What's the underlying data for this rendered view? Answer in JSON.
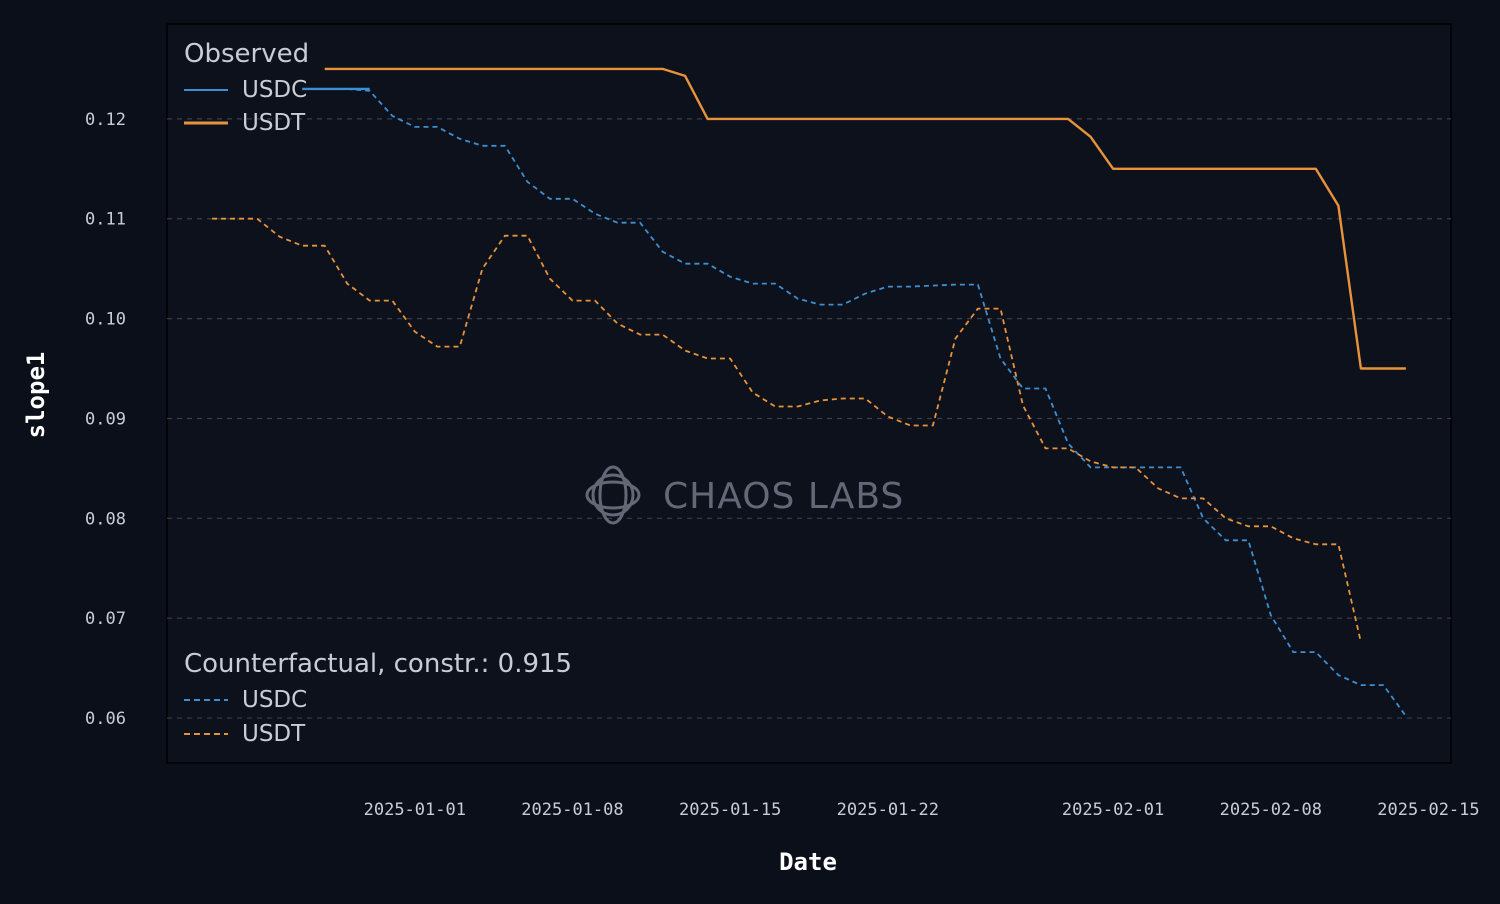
{
  "chart_data": {
    "type": "line",
    "xlabel": "Date",
    "ylabel": "slope1",
    "ylim": [
      0.0555,
      0.1295
    ],
    "xlim": [
      "2024-12-21",
      "2025-02-16"
    ],
    "x_ticks": [
      "2025-01-01",
      "2025-01-08",
      "2025-01-15",
      "2025-01-22",
      "2025-02-01",
      "2025-02-08",
      "2025-02-15"
    ],
    "y_ticks": [
      0.06,
      0.07,
      0.08,
      0.09,
      0.1,
      0.11,
      0.12
    ],
    "y_tick_labels": [
      "0.06",
      "0.07",
      "0.08",
      "0.09",
      "0.10",
      "0.11",
      "0.12"
    ],
    "grid": "horizontal dashed",
    "watermark": "CHAOS LABS",
    "legend_groups": [
      {
        "title": "Observed",
        "placement": "top-left",
        "entries": [
          {
            "label": "USDC",
            "series": 0
          },
          {
            "label": "USDT",
            "series": 1
          }
        ]
      },
      {
        "title": "Counterfactual, constr.: 0.915",
        "placement": "bottom-left",
        "entries": [
          {
            "label": "USDC",
            "series": 2
          },
          {
            "label": "USDT",
            "series": 3
          }
        ]
      }
    ],
    "series": [
      {
        "name": "USDC",
        "group": "Observed",
        "color": "#3d8fd1",
        "style": "solid",
        "points": [
          [
            "2024-12-27",
            0.123
          ],
          [
            "2024-12-28",
            0.123
          ],
          [
            "2024-12-29",
            0.123
          ],
          [
            "2024-12-30",
            0.123
          ]
        ]
      },
      {
        "name": "USDT",
        "group": "Observed",
        "color": "#e8923a",
        "style": "solid",
        "points": [
          [
            "2024-12-28",
            0.125
          ],
          [
            "2025-01-12",
            0.125
          ],
          [
            "2025-01-13",
            0.1243
          ],
          [
            "2025-01-14",
            0.12
          ],
          [
            "2025-01-30",
            0.12
          ],
          [
            "2025-01-31",
            0.1182
          ],
          [
            "2025-02-01",
            0.115
          ],
          [
            "2025-02-10",
            0.115
          ],
          [
            "2025-02-11",
            0.1113
          ],
          [
            "2025-02-12",
            0.095
          ],
          [
            "2025-02-14",
            0.095
          ]
        ]
      },
      {
        "name": "USDC",
        "group": "Counterfactual, constr.: 0.915",
        "color": "#3d8fd1",
        "style": "dashed",
        "points": [
          [
            "2024-12-29",
            0.123
          ],
          [
            "2024-12-30",
            0.1228
          ],
          [
            "2024-12-31",
            0.1203
          ],
          [
            "2025-01-01",
            0.1192
          ],
          [
            "2025-01-02",
            0.1192
          ],
          [
            "2025-01-03",
            0.118
          ],
          [
            "2025-01-04",
            0.1173
          ],
          [
            "2025-01-05",
            0.1173
          ],
          [
            "2025-01-06",
            0.1137
          ],
          [
            "2025-01-07",
            0.112
          ],
          [
            "2025-01-08",
            0.112
          ],
          [
            "2025-01-09",
            0.1105
          ],
          [
            "2025-01-10",
            0.1096
          ],
          [
            "2025-01-11",
            0.1096
          ],
          [
            "2025-01-12",
            0.1067
          ],
          [
            "2025-01-13",
            0.1055
          ],
          [
            "2025-01-14",
            0.1055
          ],
          [
            "2025-01-15",
            0.1042
          ],
          [
            "2025-01-16",
            0.1035
          ],
          [
            "2025-01-17",
            0.1035
          ],
          [
            "2025-01-18",
            0.102
          ],
          [
            "2025-01-19",
            0.1014
          ],
          [
            "2025-01-20",
            0.1014
          ],
          [
            "2025-01-21",
            0.1025
          ],
          [
            "2025-01-22",
            0.1032
          ],
          [
            "2025-01-23",
            0.1032
          ],
          [
            "2025-01-24",
            0.1033
          ],
          [
            "2025-01-25",
            0.1034
          ],
          [
            "2025-01-26",
            0.1034
          ],
          [
            "2025-01-27",
            0.096
          ],
          [
            "2025-01-28",
            0.093
          ],
          [
            "2025-01-29",
            0.093
          ],
          [
            "2025-01-30",
            0.0875
          ],
          [
            "2025-01-31",
            0.0851
          ],
          [
            "2025-02-01",
            0.0851
          ],
          [
            "2025-02-02",
            0.0851
          ],
          [
            "2025-02-03",
            0.0851
          ],
          [
            "2025-02-04",
            0.0851
          ],
          [
            "2025-02-05",
            0.08
          ],
          [
            "2025-02-06",
            0.0778
          ],
          [
            "2025-02-07",
            0.0778
          ],
          [
            "2025-02-08",
            0.0703
          ],
          [
            "2025-02-09",
            0.0666
          ],
          [
            "2025-02-10",
            0.0666
          ],
          [
            "2025-02-11",
            0.0643
          ],
          [
            "2025-02-12",
            0.0633
          ],
          [
            "2025-02-13",
            0.0633
          ],
          [
            "2025-02-14",
            0.0602
          ]
        ]
      },
      {
        "name": "USDT",
        "group": "Counterfactual, constr.: 0.915",
        "color": "#e8923a",
        "style": "dashed",
        "points": [
          [
            "2024-12-23",
            0.11
          ],
          [
            "2024-12-24",
            0.11
          ],
          [
            "2024-12-25",
            0.11
          ],
          [
            "2024-12-26",
            0.1082
          ],
          [
            "2024-12-27",
            0.1073
          ],
          [
            "2024-12-28",
            0.1073
          ],
          [
            "2024-12-29",
            0.1035
          ],
          [
            "2024-12-30",
            0.1018
          ],
          [
            "2024-12-31",
            0.1018
          ],
          [
            "2025-01-01",
            0.0987
          ],
          [
            "2025-01-02",
            0.0972
          ],
          [
            "2025-01-03",
            0.0972
          ],
          [
            "2025-01-04",
            0.105
          ],
          [
            "2025-01-05",
            0.1083
          ],
          [
            "2025-01-06",
            0.1083
          ],
          [
            "2025-01-07",
            0.104
          ],
          [
            "2025-01-08",
            0.1018
          ],
          [
            "2025-01-09",
            0.1018
          ],
          [
            "2025-01-10",
            0.0995
          ],
          [
            "2025-01-11",
            0.0984
          ],
          [
            "2025-01-12",
            0.0984
          ],
          [
            "2025-01-13",
            0.0968
          ],
          [
            "2025-01-14",
            0.096
          ],
          [
            "2025-01-15",
            0.096
          ],
          [
            "2025-01-16",
            0.0926
          ],
          [
            "2025-01-17",
            0.0912
          ],
          [
            "2025-01-18",
            0.0912
          ],
          [
            "2025-01-19",
            0.0918
          ],
          [
            "2025-01-20",
            0.092
          ],
          [
            "2025-01-21",
            0.092
          ],
          [
            "2025-01-22",
            0.0902
          ],
          [
            "2025-01-23",
            0.0893
          ],
          [
            "2025-01-24",
            0.0893
          ],
          [
            "2025-01-25",
            0.098
          ],
          [
            "2025-01-26",
            0.101
          ],
          [
            "2025-01-27",
            0.101
          ],
          [
            "2025-01-28",
            0.0913
          ],
          [
            "2025-01-29",
            0.087
          ],
          [
            "2025-01-30",
            0.087
          ],
          [
            "2025-01-31",
            0.0857
          ],
          [
            "2025-02-01",
            0.0851
          ],
          [
            "2025-02-02",
            0.0851
          ],
          [
            "2025-02-03",
            0.083
          ],
          [
            "2025-02-04",
            0.082
          ],
          [
            "2025-02-05",
            0.082
          ],
          [
            "2025-02-06",
            0.08
          ],
          [
            "2025-02-07",
            0.0792
          ],
          [
            "2025-02-08",
            0.0792
          ],
          [
            "2025-02-09",
            0.078
          ],
          [
            "2025-02-10",
            0.0774
          ],
          [
            "2025-02-11",
            0.0774
          ],
          [
            "2025-02-12",
            0.0676
          ]
        ]
      }
    ]
  }
}
